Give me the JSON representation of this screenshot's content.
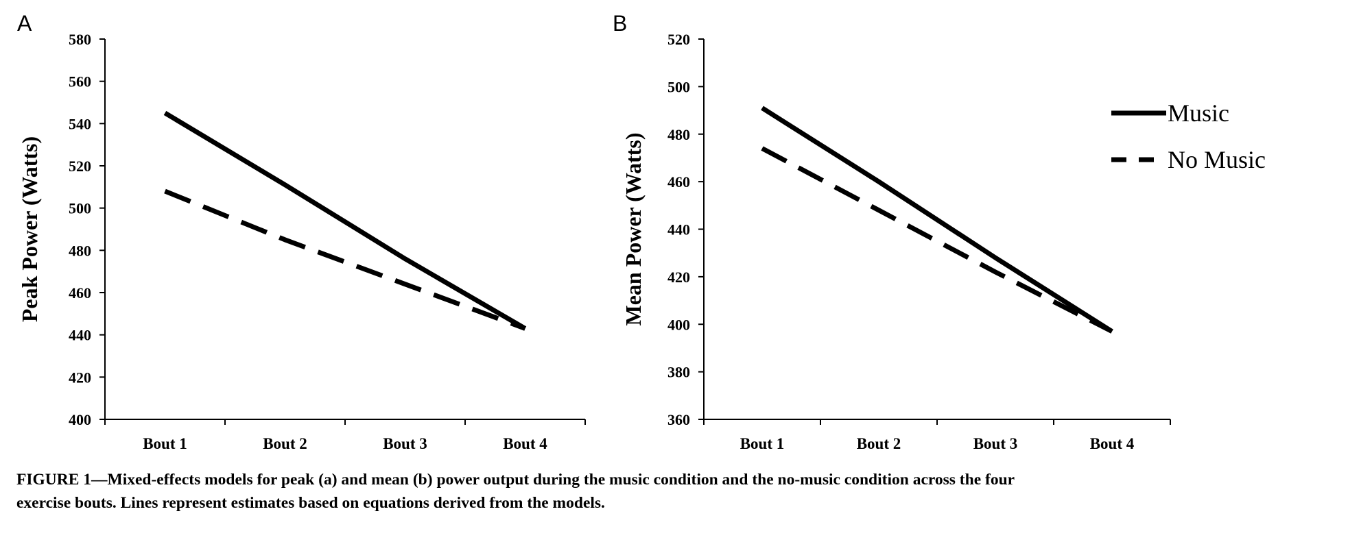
{
  "chart_data": [
    {
      "panel": "A",
      "type": "line",
      "title": "",
      "xlabel": "",
      "ylabel": "Peak Power (Watts)",
      "categories": [
        "Bout 1",
        "Bout 2",
        "Bout 3",
        "Bout 4"
      ],
      "ylim": [
        400,
        580
      ],
      "yticks": [
        400,
        420,
        440,
        460,
        480,
        500,
        520,
        540,
        560,
        580
      ],
      "series": [
        {
          "name": "Music",
          "style": "solid",
          "values": [
            545,
            511,
            476,
            443
          ]
        },
        {
          "name": "No Music",
          "style": "dashed",
          "values": [
            508,
            485,
            464,
            443
          ]
        }
      ]
    },
    {
      "panel": "B",
      "type": "line",
      "title": "",
      "xlabel": "",
      "ylabel": "Mean Power (Watts)",
      "categories": [
        "Bout 1",
        "Bout 2",
        "Bout 3",
        "Bout 4"
      ],
      "ylim": [
        360,
        520
      ],
      "yticks": [
        360,
        380,
        400,
        420,
        440,
        460,
        480,
        500,
        520
      ],
      "series": [
        {
          "name": "Music",
          "style": "solid",
          "values": [
            491,
            460,
            428,
            397
          ]
        },
        {
          "name": "No Music",
          "style": "dashed",
          "values": [
            474,
            448,
            422,
            397
          ]
        }
      ],
      "legend": {
        "position": "top-right",
        "entries": [
          {
            "label": "Music",
            "style": "solid"
          },
          {
            "label": "No Music",
            "style": "dashed"
          }
        ]
      }
    }
  ],
  "caption": {
    "line1": "FIGURE 1—Mixed-effects models for peak (a) and mean (b) power output during the music condition and the no-music condition across the four",
    "line2": "exercise bouts. Lines represent estimates based on equations derived from the models."
  },
  "colors": {
    "line": "#000000",
    "axis": "#000000",
    "background": "#ffffff"
  }
}
